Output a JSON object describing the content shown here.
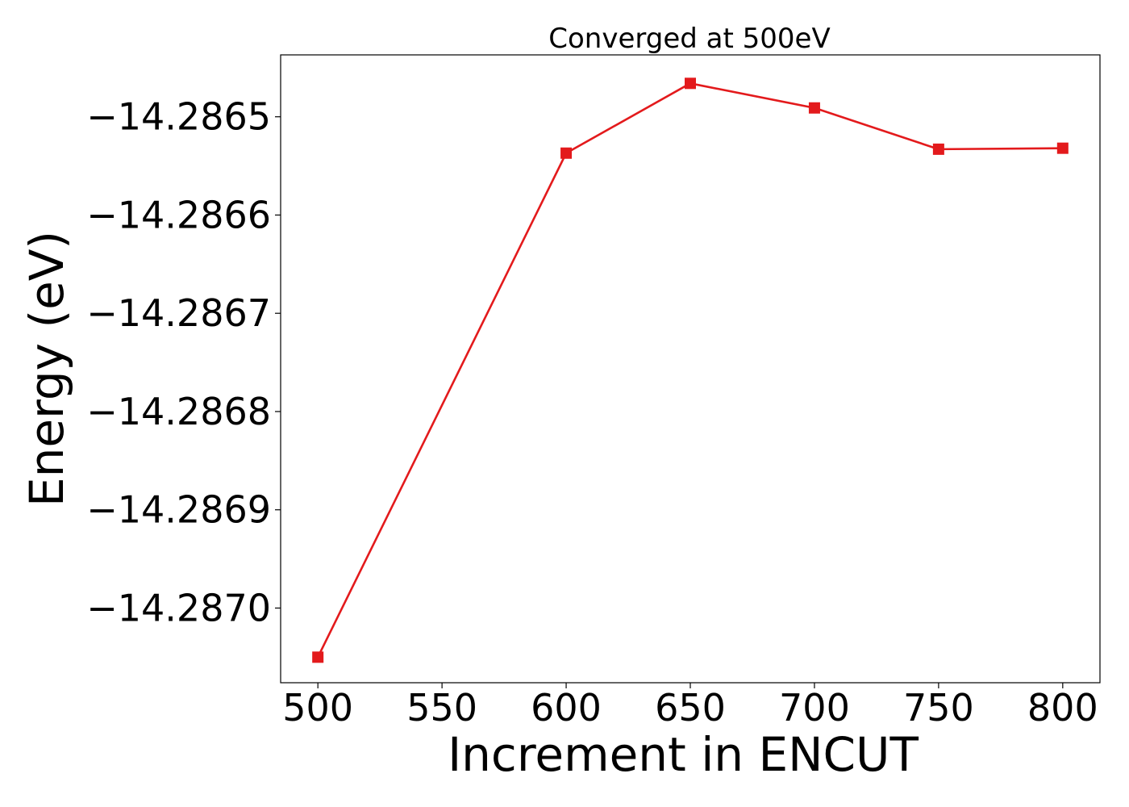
{
  "chart_data": {
    "type": "line",
    "title": "Converged at 500eV",
    "xlabel": "Increment in ENCUT",
    "ylabel": "Energy (eV)",
    "x": [
      500,
      600,
      650,
      700,
      750,
      800
    ],
    "series": [
      {
        "values": [
          -14.28705,
          -14.286537,
          -14.286466,
          -14.286491,
          -14.286533,
          -14.286532
        ],
        "color": "#e31a1c",
        "marker": "square"
      }
    ],
    "xlim": [
      485,
      815
    ],
    "ylim": [
      -14.287076,
      -14.286437
    ],
    "xticks": [
      500,
      550,
      600,
      650,
      700,
      750,
      800
    ],
    "xtick_labels": [
      "500",
      "550",
      "600",
      "650",
      "700",
      "750",
      "800"
    ],
    "yticks": [
      -14.2865,
      -14.2866,
      -14.2867,
      -14.2868,
      -14.2869,
      -14.287
    ],
    "ytick_labels": [
      "−14.2865",
      "−14.2866",
      "−14.2867",
      "−14.2868",
      "−14.2869",
      "−14.2870"
    ],
    "grid": false,
    "legend": false
  }
}
